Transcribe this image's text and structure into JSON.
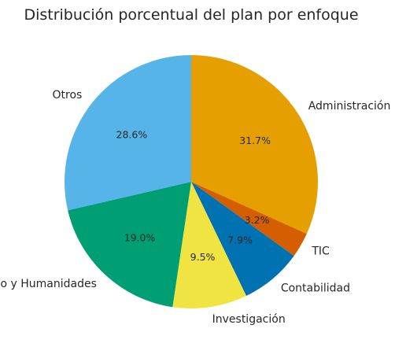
{
  "chart_data": {
    "type": "pie",
    "title": "Distribución porcentual del plan por enfoque",
    "categories": [
      "Administración",
      "TIC",
      "Contabilidad",
      "Investigación",
      "Derecho y Humanidades",
      "Otros"
    ],
    "values": [
      31.7,
      3.2,
      7.9,
      9.5,
      19.0,
      28.6
    ],
    "value_labels": [
      "31.7%",
      "3.2%",
      "7.9%",
      "9.5%",
      "19.0%",
      "28.6%"
    ],
    "colors": [
      "#E69F00",
      "#D55E00",
      "#0072B2",
      "#F0E442",
      "#009E73",
      "#56B4E9"
    ],
    "start_angle_deg": 90,
    "direction": "clockwise",
    "legend": "none"
  }
}
